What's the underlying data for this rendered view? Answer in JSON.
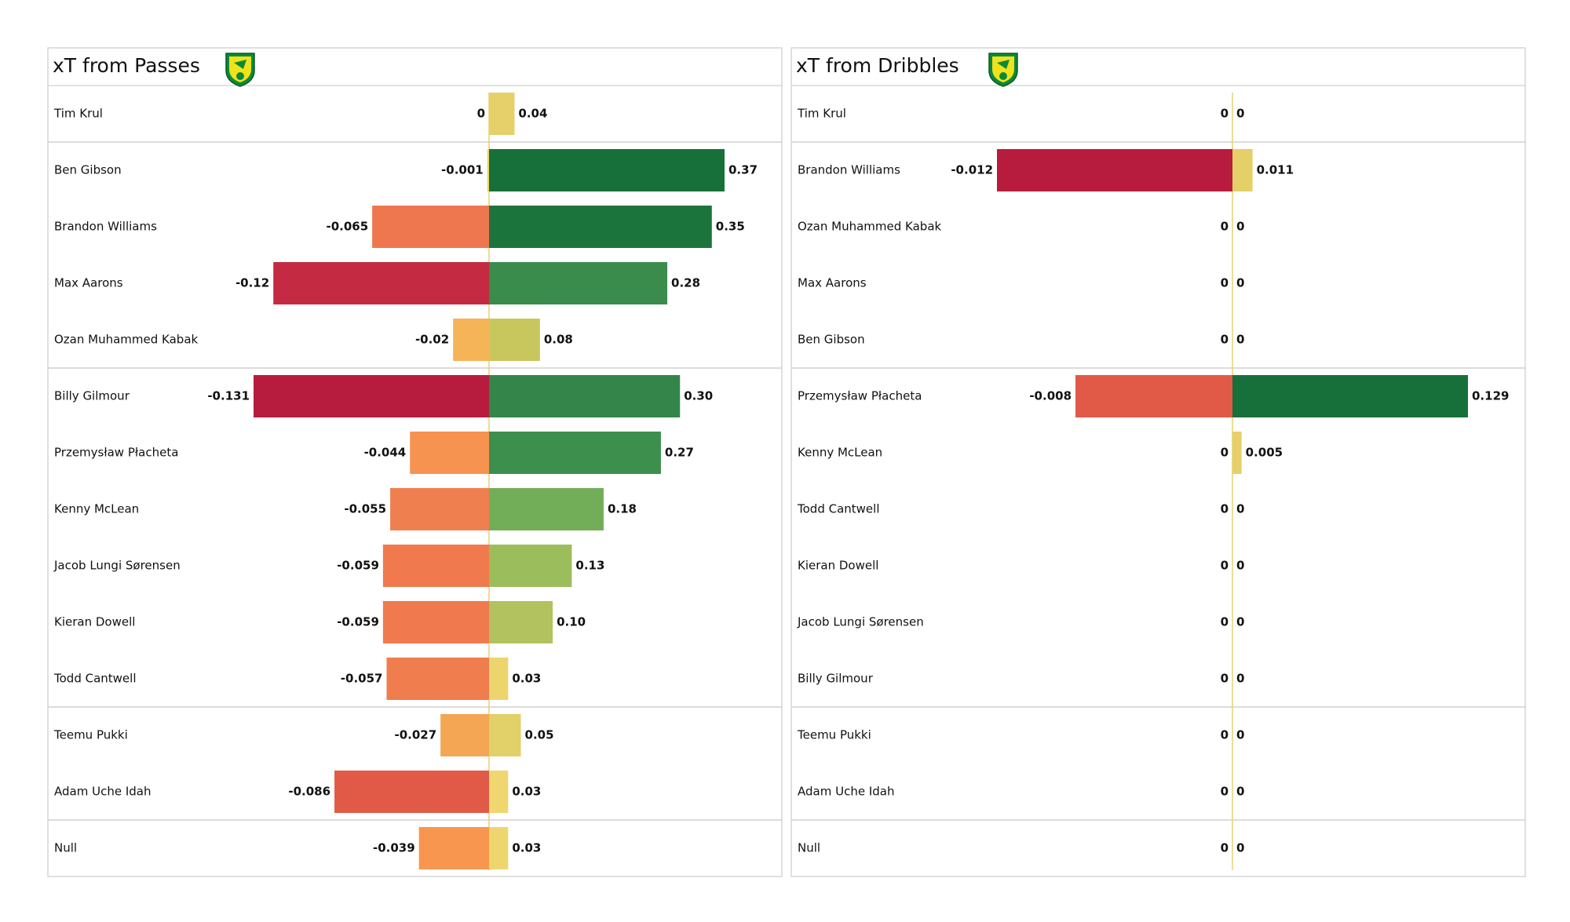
{
  "chart_data": [
    {
      "type": "bar",
      "title": "xT from Passes",
      "categories": [
        "Tim Krul",
        "Ben Gibson",
        "Brandon Williams",
        "Max Aarons",
        "Ozan Muhammed Kabak",
        "Billy Gilmour",
        "Przemysław Płacheta",
        "Kenny McLean",
        "Jacob  Lungi Sørensen",
        "Kieran Dowell",
        "Todd Cantwell",
        "Teemu Pukki",
        "Adam Uche Idah",
        "Null"
      ],
      "series": [
        {
          "values": [
            0,
            -0.001,
            -0.065,
            -0.12,
            -0.02,
            -0.131,
            -0.044,
            -0.055,
            -0.059,
            -0.059,
            -0.057,
            -0.027,
            -0.086,
            -0.039
          ],
          "colors": [
            "#e8d56a",
            "#e8d56a",
            "#ef774f",
            "#c42b42",
            "#f4b457",
            "#b71c3e",
            "#f79350",
            "#f07f4f",
            "#f07a4d",
            "#f07a4d",
            "#f07d4e",
            "#f5a654",
            "#e15a48",
            "#f89650"
          ]
        },
        {
          "values": [
            0.04,
            0.37,
            0.35,
            0.28,
            0.08,
            0.3,
            0.27,
            0.18,
            0.13,
            0.1,
            0.03,
            0.05,
            0.03,
            0.03
          ],
          "value_labels": [
            "0.04",
            "0.37",
            "0.35",
            "0.28",
            "0.08",
            "0.30",
            "0.27",
            "0.18",
            "0.13",
            "0.10",
            "0.03",
            "0.05",
            "0.03",
            "0.03"
          ],
          "colors": [
            "#e5d06a",
            "#17703a",
            "#1b743c",
            "#3a8c4c",
            "#c7c75e",
            "#33854a",
            "#3d8f4d",
            "#72ae58",
            "#9cbd5b",
            "#b2c25e",
            "#ecd56d",
            "#e2d068",
            "#f0d66e",
            "#efd56e"
          ]
        }
      ]
    },
    {
      "type": "bar",
      "title": "xT from Dribbles",
      "categories": [
        "Tim Krul",
        "Brandon Williams",
        "Ozan Muhammed Kabak",
        "Max Aarons",
        "Ben Gibson",
        "Przemysław Płacheta",
        "Kenny McLean",
        "Todd Cantwell",
        "Kieran Dowell",
        "Jacob  Lungi Sørensen",
        "Billy Gilmour",
        "Teemu Pukki",
        "Adam Uche Idah",
        "Null"
      ],
      "series": [
        {
          "values": [
            0,
            -0.012,
            0,
            0,
            0,
            -0.008,
            0,
            0,
            0,
            0,
            0,
            0,
            0,
            0
          ],
          "colors": [
            "#e8d56a",
            "#b71c3e",
            "#e8d56a",
            "#e8d56a",
            "#e8d56a",
            "#e15a48",
            "#e8d56a",
            "#e8d56a",
            "#e8d56a",
            "#e8d56a",
            "#e8d56a",
            "#e8d56a",
            "#e8d56a",
            "#e8d56a"
          ]
        },
        {
          "values": [
            0,
            0.011,
            0,
            0,
            0,
            0.129,
            0.005,
            0,
            0,
            0,
            0,
            0,
            0,
            0
          ],
          "colors": [
            "#e8d56a",
            "#e5cf68",
            "#e8d56a",
            "#e8d56a",
            "#e8d56a",
            "#17703a",
            "#e5d06a",
            "#e8d56a",
            "#e8d56a",
            "#e8d56a",
            "#e8d56a",
            "#e8d56a",
            "#e8d56a",
            "#e8d56a"
          ]
        }
      ]
    }
  ]
}
